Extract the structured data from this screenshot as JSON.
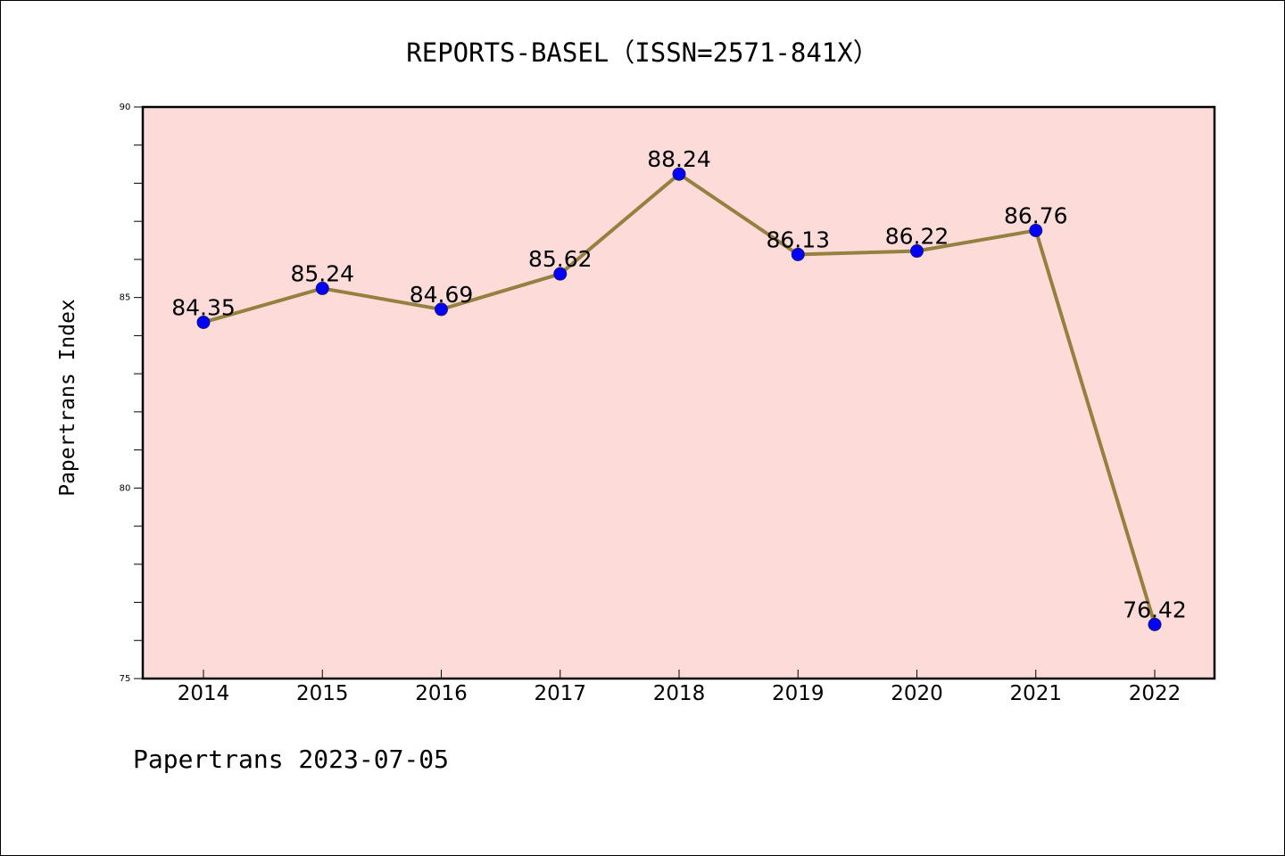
{
  "chart_data": {
    "type": "line",
    "title": "REPORTS-BASEL（ISSN=2571-841X）",
    "xlabel": "",
    "ylabel": "Papertrans Index",
    "categories": [
      "2014",
      "2015",
      "2016",
      "2017",
      "2018",
      "2019",
      "2020",
      "2021",
      "2022"
    ],
    "series": [
      {
        "values": [
          84.35,
          85.24,
          84.69,
          85.62,
          88.24,
          86.13,
          86.22,
          86.76,
          76.42
        ],
        "data_labels": [
          "84.35",
          "85.24",
          "84.69",
          "85.62",
          "88.24",
          "86.13",
          "86.22",
          "86.76",
          "76.42"
        ]
      }
    ],
    "ylim": [
      75,
      90
    ],
    "yticks": [
      "75",
      "80",
      "85",
      "90"
    ],
    "y_minor_step": 1,
    "grid": false,
    "colors": {
      "plot_background": "#fddbd8",
      "line": "#94813f",
      "marker": "#0000ff",
      "axes": "#000000"
    }
  },
  "footer": {
    "text": "Papertrans 2023-07-05"
  }
}
